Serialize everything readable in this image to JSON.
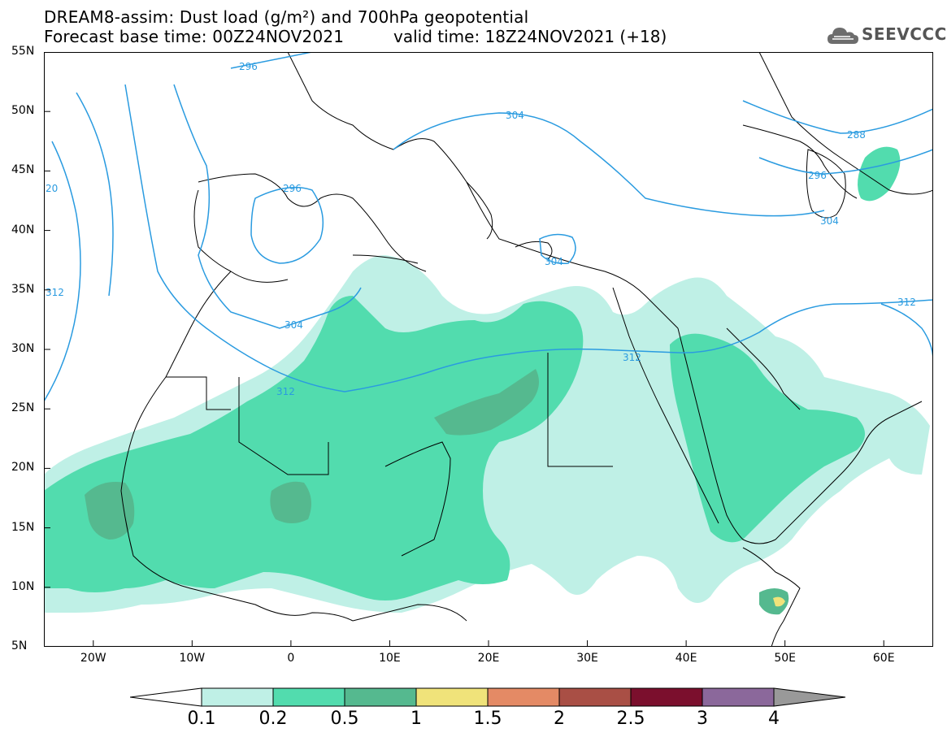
{
  "title": {
    "line1": "DREAM8-assim: Dust load (g/m²) and 700hPa geopotential",
    "line2a": "Forecast base time: 00Z24NOV2021",
    "line2b": "valid time: 18Z24NOV2021 (+18)"
  },
  "logo": {
    "text": "SEEVCCC",
    "icon": "cloud-icon"
  },
  "axes": {
    "lat_ticks": [
      "55N",
      "50N",
      "45N",
      "40N",
      "35N",
      "30N",
      "25N",
      "20N",
      "15N",
      "10N",
      "5N"
    ],
    "lon_ticks": [
      "20W",
      "10W",
      "0",
      "10E",
      "20E",
      "30E",
      "40E",
      "50E",
      "60E"
    ],
    "lon_range": [
      -25,
      65
    ],
    "lat_range": [
      5,
      55
    ]
  },
  "contours": {
    "labels": [
      "296",
      "304",
      "288",
      "296",
      "304",
      "296",
      "304",
      "312",
      "312",
      "312",
      "304",
      "312",
      "20",
      "312",
      "304",
      "296"
    ],
    "color": "#2a9be0"
  },
  "colorbar": {
    "labels": [
      "0.1",
      "0.2",
      "0.5",
      "1",
      "1.5",
      "2",
      "2.5",
      "3",
      "4"
    ],
    "colors": [
      "#ffffff",
      "#bff0e6",
      "#52dcae",
      "#55b98f",
      "#f0e37a",
      "#e48a65",
      "#a94f45",
      "#7b0f2d",
      "#8b689b",
      "#999999"
    ]
  }
}
